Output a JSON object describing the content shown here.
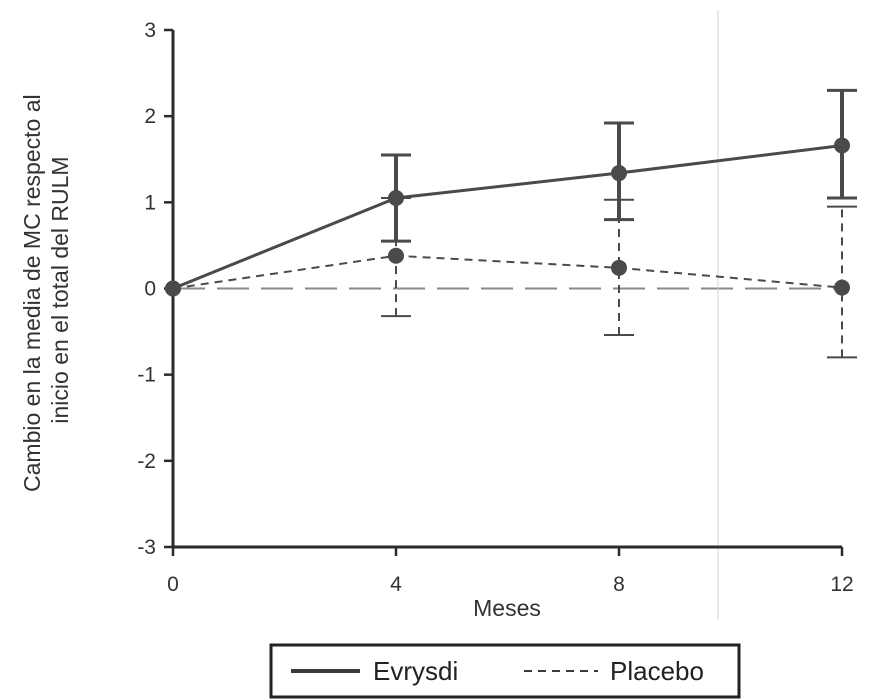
{
  "chart_data": {
    "type": "line",
    "xlabel": "Meses",
    "ylabel_lines": [
      "Cambio en la media de MC respecto al",
      "inicio en el total del RULM"
    ],
    "x_ticks": [
      0,
      4,
      8,
      12
    ],
    "y_ticks": [
      3,
      2,
      1,
      0,
      -1,
      -2,
      -3
    ],
    "xlim": [
      0,
      12
    ],
    "ylim": [
      -3,
      3
    ],
    "grid": false,
    "legend_position": "bottom-center",
    "reference_line": 0,
    "series": [
      {
        "name": "Evrysdi",
        "style": "solid",
        "color": "#4a4a4a",
        "x": [
          0,
          4,
          8,
          12
        ],
        "y": [
          0,
          1.05,
          1.34,
          1.66
        ],
        "err_low": [
          null,
          0.55,
          0.8,
          1.05
        ],
        "err_high": [
          null,
          1.55,
          1.92,
          2.3
        ]
      },
      {
        "name": "Placebo",
        "style": "dashed",
        "color": "#4a4a4a",
        "x": [
          0,
          4,
          8,
          12
        ],
        "y": [
          0,
          0.38,
          0.24,
          0.01
        ],
        "err_low": [
          null,
          -0.32,
          -0.54,
          -0.8
        ],
        "err_high": [
          null,
          1.05,
          1.03,
          0.95
        ]
      }
    ]
  }
}
